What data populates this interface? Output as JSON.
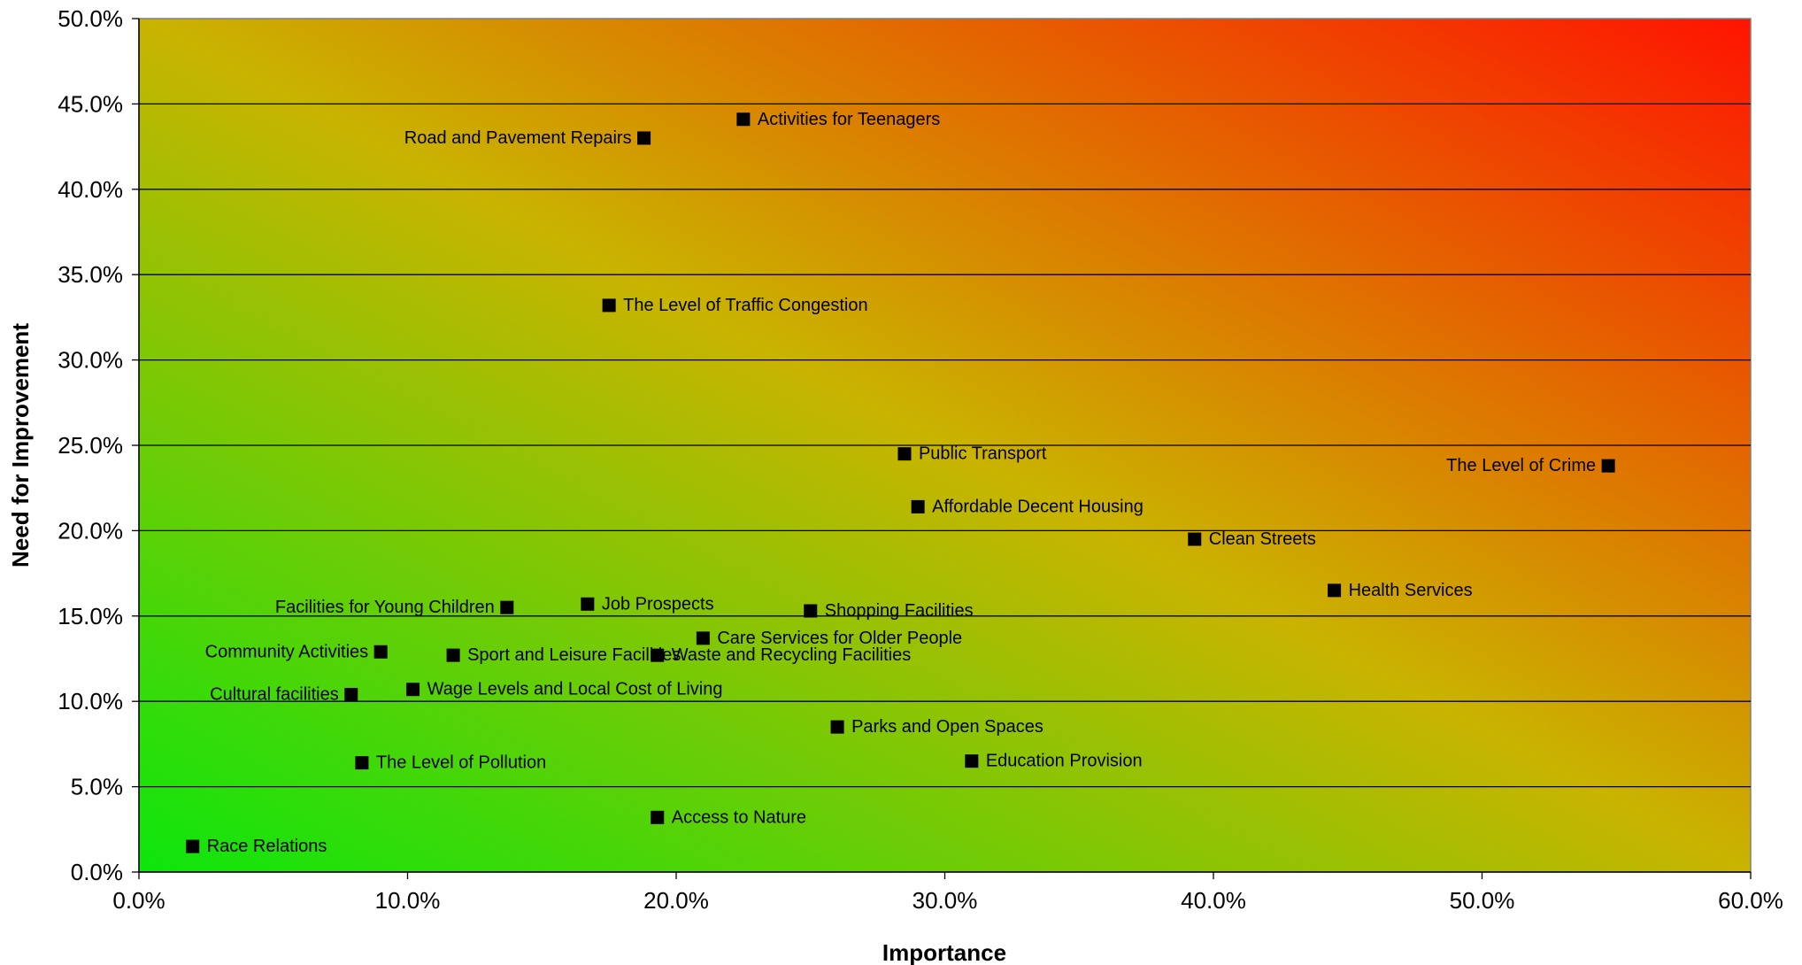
{
  "chart_data": {
    "type": "scatter",
    "title": "",
    "xlabel": "Importance",
    "ylabel": "Need for Improvement",
    "xlim": [
      0,
      60
    ],
    "ylim": [
      0,
      50
    ],
    "x_ticks": [
      "0.0%",
      "10.0%",
      "20.0%",
      "30.0%",
      "40.0%",
      "50.0%",
      "60.0%"
    ],
    "y_ticks": [
      "0.0%",
      "5.0%",
      "10.0%",
      "15.0%",
      "20.0%",
      "25.0%",
      "30.0%",
      "35.0%",
      "40.0%",
      "45.0%",
      "50.0%"
    ],
    "grid": "horizontal",
    "background": "gradient green (bottom-left) to red (top-right)",
    "colors": {
      "low": "#10e010",
      "mid": "#c8b400",
      "high": "#ff1a00",
      "marker": "#000000"
    },
    "points": [
      {
        "label": "Activities for Teenagers",
        "x": 22.5,
        "y": 44.1
      },
      {
        "label": "Road and Pavement Repairs",
        "x": 18.8,
        "y": 43.0
      },
      {
        "label": "The Level of Traffic Congestion",
        "x": 17.5,
        "y": 33.2
      },
      {
        "label": "Public Transport",
        "x": 28.5,
        "y": 24.5
      },
      {
        "label": "The Level of Crime",
        "x": 54.7,
        "y": 23.8
      },
      {
        "label": "Affordable Decent Housing",
        "x": 29.0,
        "y": 21.4
      },
      {
        "label": "Clean Streets",
        "x": 39.3,
        "y": 19.5
      },
      {
        "label": "Health Services",
        "x": 44.5,
        "y": 16.5
      },
      {
        "label": "Facilities for Young Children",
        "x": 13.7,
        "y": 15.5
      },
      {
        "label": "Job Prospects",
        "x": 16.7,
        "y": 15.7
      },
      {
        "label": "Shopping Facilities",
        "x": 25.0,
        "y": 15.3
      },
      {
        "label": "Care Services for Older People",
        "x": 21.0,
        "y": 13.7
      },
      {
        "label": "Community Activities",
        "x": 9.0,
        "y": 12.9
      },
      {
        "label": "Sport and Leisure Facilities",
        "x": 11.7,
        "y": 12.7
      },
      {
        "label": "Waste and Recycling Facilities",
        "x": 19.3,
        "y": 12.7
      },
      {
        "label": "Cultural facilities",
        "x": 7.9,
        "y": 10.4
      },
      {
        "label": "Wage Levels and Local Cost of Living",
        "x": 10.2,
        "y": 10.7
      },
      {
        "label": "Parks and Open Spaces",
        "x": 26.0,
        "y": 8.5
      },
      {
        "label": "Education Provision",
        "x": 31.0,
        "y": 6.5
      },
      {
        "label": "The Level of Pollution",
        "x": 8.3,
        "y": 6.4
      },
      {
        "label": "Access to Nature",
        "x": 19.3,
        "y": 3.2
      },
      {
        "label": "Race Relations",
        "x": 2.0,
        "y": 1.5
      }
    ]
  }
}
